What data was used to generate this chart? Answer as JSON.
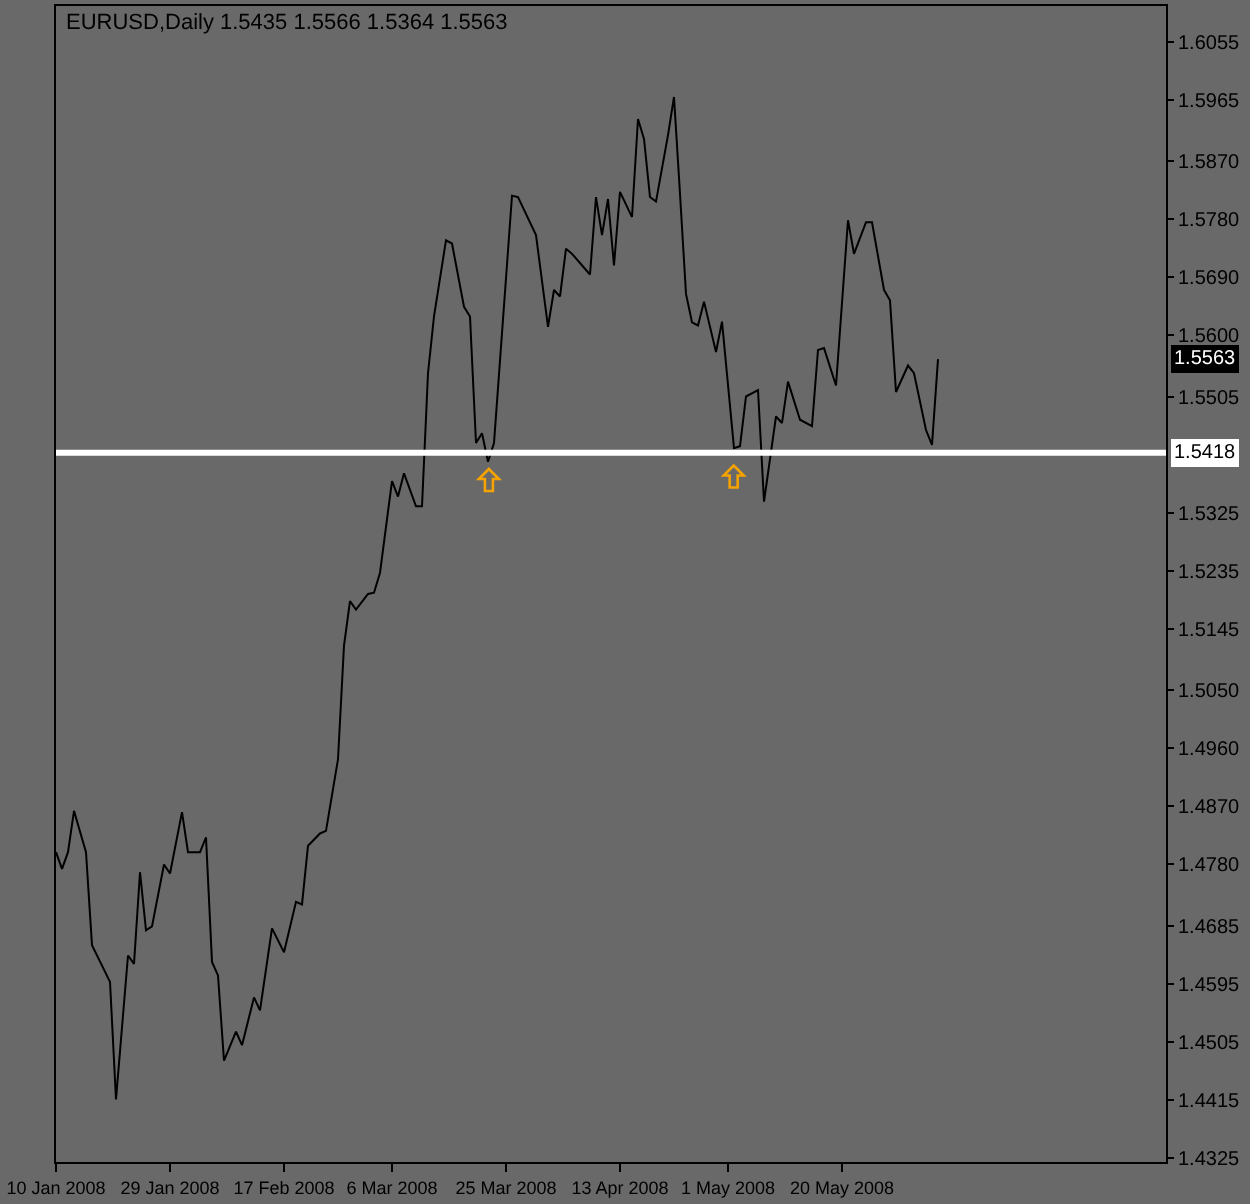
{
  "chart_data": {
    "type": "line",
    "title": "EURUSD,Daily 1.5435 1.5566 1.5364 1.5563",
    "x": [
      "2008-01-10",
      "2008-01-11",
      "2008-01-12",
      "2008-01-13",
      "2008-01-15",
      "2008-01-16",
      "2008-01-19",
      "2008-01-20",
      "2008-01-22",
      "2008-01-23",
      "2008-01-24",
      "2008-01-25",
      "2008-01-26",
      "2008-01-28",
      "2008-01-29",
      "2008-01-31",
      "2008-02-01",
      "2008-02-03",
      "2008-02-04",
      "2008-02-05",
      "2008-02-06",
      "2008-02-07",
      "2008-02-09",
      "2008-02-10",
      "2008-02-12",
      "2008-02-13",
      "2008-02-15",
      "2008-02-17",
      "2008-02-19",
      "2008-02-20",
      "2008-02-21",
      "2008-02-23",
      "2008-02-24",
      "2008-02-26",
      "2008-02-27",
      "2008-02-28",
      "2008-02-29",
      "2008-03-02",
      "2008-03-03",
      "2008-03-04",
      "2008-03-06",
      "2008-03-07",
      "2008-03-08",
      "2008-03-10",
      "2008-03-11",
      "2008-03-12",
      "2008-03-13",
      "2008-03-15",
      "2008-03-16",
      "2008-03-18",
      "2008-03-19",
      "2008-03-20",
      "2008-03-21",
      "2008-03-22",
      "2008-03-23",
      "2008-03-26",
      "2008-03-27",
      "2008-03-30",
      "2008-04-01",
      "2008-04-02",
      "2008-04-03",
      "2008-04-04",
      "2008-04-05",
      "2008-04-08",
      "2008-04-09",
      "2008-04-10",
      "2008-04-11",
      "2008-04-12",
      "2008-04-13",
      "2008-04-15",
      "2008-04-16",
      "2008-04-17",
      "2008-04-18",
      "2008-04-19",
      "2008-04-21",
      "2008-04-22",
      "2008-04-23",
      "2008-04-24",
      "2008-04-25",
      "2008-04-26",
      "2008-04-27",
      "2008-04-29",
      "2008-04-30",
      "2008-05-02",
      "2008-05-03",
      "2008-05-04",
      "2008-05-06",
      "2008-05-07",
      "2008-05-09",
      "2008-05-10",
      "2008-05-11",
      "2008-05-13",
      "2008-05-15",
      "2008-05-16",
      "2008-05-17",
      "2008-05-19",
      "2008-05-21",
      "2008-05-22",
      "2008-05-24",
      "2008-05-25",
      "2008-05-27",
      "2008-05-28",
      "2008-05-29",
      "2008-05-31",
      "2008-06-01",
      "2008-06-03",
      "2008-06-04",
      "2008-06-05"
    ],
    "series": [
      {
        "color": "#000000",
        "values": [
          1.4799,
          1.4773,
          1.4799,
          1.4863,
          1.4799,
          1.4655,
          1.4598,
          1.4416,
          1.4639,
          1.4626,
          1.4768,
          1.4678,
          1.4684,
          1.478,
          1.4766,
          1.4861,
          1.4799,
          1.4799,
          1.4822,
          1.4629,
          1.4608,
          1.4476,
          1.4521,
          1.45,
          1.4574,
          1.4554,
          1.4681,
          1.4644,
          1.4722,
          1.4718,
          1.4809,
          1.4828,
          1.4832,
          1.4943,
          1.5119,
          1.5188,
          1.5175,
          1.5199,
          1.5201,
          1.5232,
          1.5374,
          1.535,
          1.5386,
          1.5335,
          1.5335,
          1.5541,
          1.5629,
          1.5747,
          1.5742,
          1.5644,
          1.5629,
          1.5433,
          1.5448,
          1.5404,
          1.5433,
          1.5816,
          1.5814,
          1.5755,
          1.5613,
          1.567,
          1.566,
          1.5734,
          1.5726,
          1.5694,
          1.5814,
          1.5755,
          1.5811,
          1.5708,
          1.5822,
          1.5783,
          1.5935,
          1.5904,
          1.5814,
          1.5807,
          1.591,
          1.5969,
          1.5819,
          1.5664,
          1.562,
          1.5615,
          1.5652,
          1.5574,
          1.5621,
          1.5425,
          1.5428,
          1.5505,
          1.5515,
          1.5342,
          1.5474,
          1.5464,
          1.5528,
          1.5469,
          1.5459,
          1.5577,
          1.558,
          1.5522,
          1.5778,
          1.5726,
          1.5775,
          1.5775,
          1.567,
          1.5654,
          1.5512,
          1.5553,
          1.5541,
          1.5453,
          1.543,
          1.5563
        ]
      }
    ],
    "xlim": [
      "2008-01-10",
      "2008-07-13"
    ],
    "xticks": [
      {
        "value": "2008-01-10",
        "label": "10 Jan 2008"
      },
      {
        "value": "2008-01-29",
        "label": "29 Jan 2008"
      },
      {
        "value": "2008-02-17",
        "label": "17 Feb 2008"
      },
      {
        "value": "2008-03-06",
        "label": "6 Mar 2008"
      },
      {
        "value": "2008-03-25",
        "label": "25 Mar 2008"
      },
      {
        "value": "2008-04-13",
        "label": "13 Apr 2008"
      },
      {
        "value": "2008-05-01",
        "label": "1 May 2008"
      },
      {
        "value": "2008-05-20",
        "label": "20 May 2008"
      }
    ],
    "ylim": [
      1.4319,
      1.611
    ],
    "yticks": [
      1.6055,
      1.5965,
      {
        "value": 1.587,
        "label": "1.5870"
      },
      {
        "value": 1.578,
        "label": "1.5780"
      },
      {
        "value": 1.569,
        "label": "1.5690"
      },
      {
        "value": 1.56,
        "label": "1.5600"
      },
      1.5505,
      1.5325,
      1.5235,
      1.5145,
      {
        "value": 1.505,
        "label": "1.5050"
      },
      {
        "value": 1.496,
        "label": "1.4960"
      },
      {
        "value": 1.487,
        "label": "1.4870"
      },
      {
        "value": 1.478,
        "label": "1.4780"
      },
      1.4685,
      1.4595,
      1.4505,
      1.4415,
      1.4325
    ],
    "ref_lines": [
      {
        "axis": "y",
        "value": 1.5418,
        "label": "1.5418",
        "color": "#ffffff"
      }
    ],
    "annotations": [
      {
        "text": "1.5563",
        "y": 1.5563
      }
    ],
    "line_style": "solid"
  }
}
